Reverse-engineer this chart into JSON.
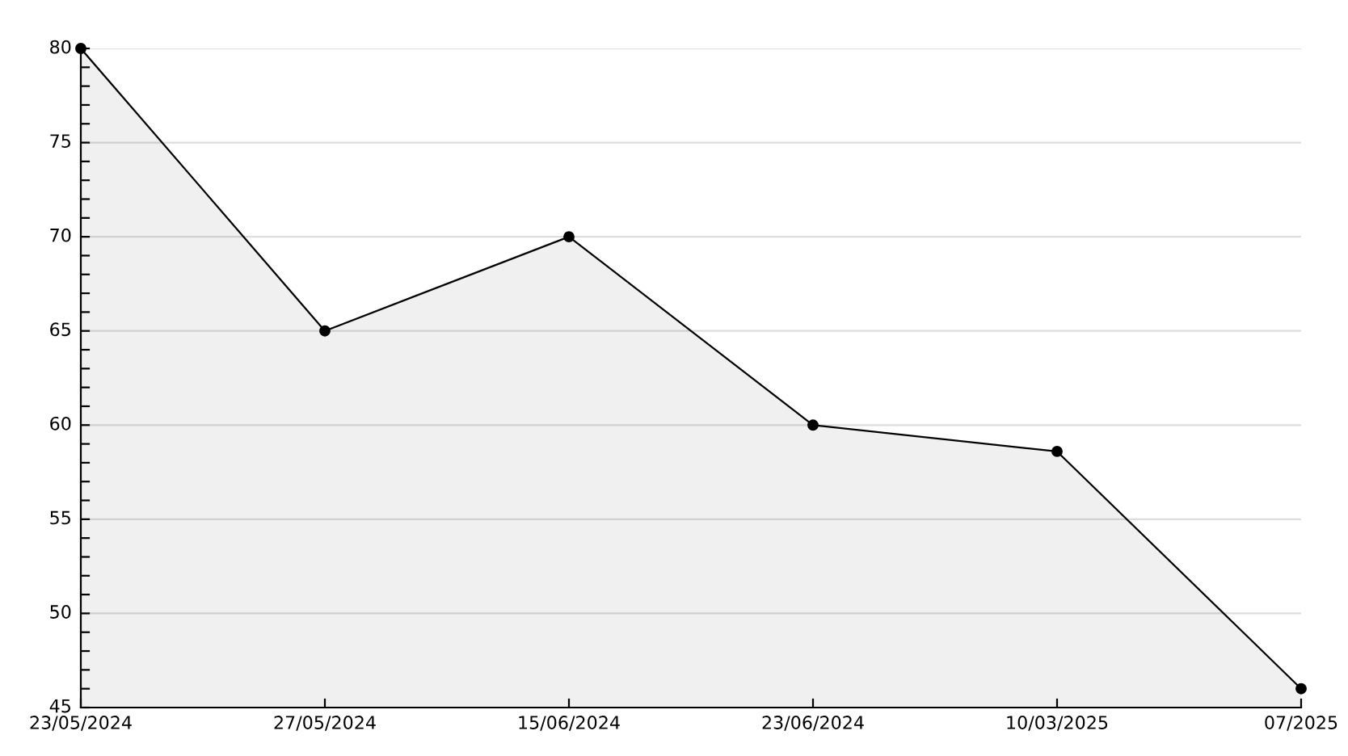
{
  "chart_data": {
    "type": "area",
    "categories": [
      "23/05/2024",
      "27/05/2024",
      "15/06/2024",
      "23/06/2024",
      "10/03/2025",
      "07/2025"
    ],
    "series": [
      {
        "color": "#000000",
        "values": [
          80,
          65,
          70,
          60,
          58.6,
          46
        ]
      }
    ],
    "ylim": [
      45,
      80
    ],
    "yticks": [
      45,
      {
        "value": 46,
        "label": null
      },
      {
        "value": 47,
        "label": null
      },
      {
        "value": 48,
        "label": null
      },
      {
        "value": 49,
        "label": null
      },
      50,
      {
        "value": 51,
        "label": null
      },
      {
        "value": 52,
        "label": null
      },
      {
        "value": 53,
        "label": null
      },
      {
        "value": 54,
        "label": null
      },
      55,
      {
        "value": 56,
        "label": null
      },
      {
        "value": 57,
        "label": null
      },
      {
        "value": 58,
        "label": null
      },
      {
        "value": 59,
        "label": null
      },
      60,
      {
        "value": 61,
        "label": null
      },
      {
        "value": 62,
        "label": null
      },
      {
        "value": 63,
        "label": null
      },
      {
        "value": 64,
        "label": null
      },
      65,
      {
        "value": 66,
        "label": null
      },
      {
        "value": 67,
        "label": null
      },
      {
        "value": 68,
        "label": null
      },
      {
        "value": 69,
        "label": null
      },
      70,
      {
        "value": 71,
        "label": null
      },
      {
        "value": 72,
        "label": null
      },
      {
        "value": 73,
        "label": null
      },
      {
        "value": 74,
        "label": null
      },
      75,
      {
        "value": 76,
        "label": null
      },
      {
        "value": 77,
        "label": null
      },
      {
        "value": 78,
        "label": null
      },
      {
        "value": 79,
        "label": null
      },
      80
    ],
    "grid": "y",
    "marker": "circle",
    "line_style": "solid"
  }
}
